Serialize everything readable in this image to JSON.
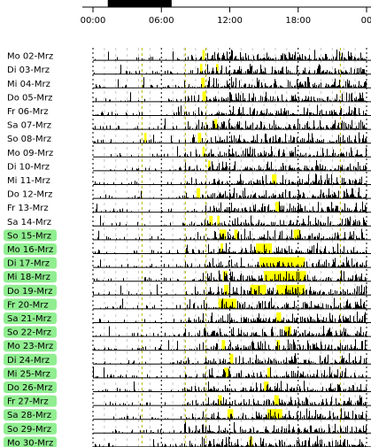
{
  "chart_data": {
    "type": "bar",
    "x_axis": {
      "ticks": [
        "00:00",
        "06:00",
        "12:00",
        "18:00",
        "00"
      ],
      "tick_hours": [
        0,
        6,
        12,
        18,
        24
      ],
      "range_hours": [
        0,
        24
      ]
    },
    "top_bar": {
      "start_hour": 1.3,
      "end_hour": 6.9
    },
    "colors": {
      "activity": "#000000",
      "highlight": "#ffff00",
      "weekend_label_bg": "#90ee90",
      "hour_gridline": "#000000",
      "subhour_gridline": "#c8c8c8",
      "marker_gridline": "#b8b800"
    },
    "marker_lines_hours": [
      4.3,
      8.1,
      9.9,
      21.7
    ],
    "rows": [
      {
        "label": "Mo 02-Mrz",
        "highlight": false,
        "seed": 11,
        "yellow": [
          [
            9.6,
            9.8
          ]
        ]
      },
      {
        "label": "Di 03-Mrz",
        "highlight": false,
        "seed": 12,
        "yellow": [
          [
            9.4,
            9.6
          ],
          [
            10.8,
            11.0
          ]
        ]
      },
      {
        "label": "Mi 04-Mrz",
        "highlight": false,
        "seed": 13,
        "yellow": [
          [
            9.5,
            9.8
          ]
        ]
      },
      {
        "label": "Do 05-Mrz",
        "highlight": false,
        "seed": 14,
        "yellow": [
          [
            9.6,
            9.9
          ]
        ]
      },
      {
        "label": "Fr 06-Mrz",
        "highlight": false,
        "seed": 15,
        "yellow": []
      },
      {
        "label": "Sa 07-Mrz",
        "highlight": false,
        "seed": 16,
        "yellow": [
          [
            10.6,
            10.9
          ]
        ]
      },
      {
        "label": "So 08-Mrz",
        "highlight": false,
        "seed": 17,
        "yellow": [
          [
            4.5,
            4.7
          ],
          [
            9.2,
            9.5
          ]
        ]
      },
      {
        "label": "Mo 09-Mrz",
        "highlight": false,
        "seed": 18,
        "yellow": [
          [
            9.6,
            9.8
          ]
        ]
      },
      {
        "label": "Di 10-Mrz",
        "highlight": false,
        "seed": 19,
        "yellow": [
          [
            10.1,
            10.3
          ]
        ]
      },
      {
        "label": "Mi 11-Mrz",
        "highlight": false,
        "seed": 20,
        "yellow": [
          [
            15.7,
            16.1
          ]
        ]
      },
      {
        "label": "Do 12-Mrz",
        "highlight": false,
        "seed": 21,
        "yellow": [
          [
            9.1,
            9.4
          ]
        ]
      },
      {
        "label": "Fr 13-Mrz",
        "highlight": false,
        "seed": 22,
        "yellow": [
          [
            16.0,
            16.4
          ]
        ]
      },
      {
        "label": "Sa 14-Mrz",
        "highlight": false,
        "seed": 23,
        "yellow": [
          [
            10.2,
            10.5
          ],
          [
            10.9,
            11.1
          ]
        ]
      },
      {
        "label": "So 15-Mrz",
        "highlight": true,
        "seed": 24,
        "yellow": [
          [
            11.1,
            11.7
          ],
          [
            12.4,
            12.7
          ],
          [
            17.6,
            18.2
          ]
        ]
      },
      {
        "label": "Mo 16-Mrz",
        "highlight": true,
        "seed": 25,
        "yellow": [
          [
            14.3,
            15.7
          ],
          [
            11.2,
            11.4
          ]
        ]
      },
      {
        "label": "Di 17-Mrz",
        "highlight": true,
        "seed": 26,
        "yellow": [
          [
            14.6,
            18.6
          ]
        ]
      },
      {
        "label": "Mi 18-Mrz",
        "highlight": true,
        "seed": 27,
        "yellow": [
          [
            15.0,
            18.7
          ],
          [
            11.4,
            11.8
          ]
        ]
      },
      {
        "label": "Do 19-Mrz",
        "highlight": true,
        "seed": 28,
        "yellow": [
          [
            13.8,
            15.2
          ],
          [
            16.1,
            18.6
          ],
          [
            11.5,
            11.9
          ]
        ]
      },
      {
        "label": "Fr 20-Mrz",
        "highlight": true,
        "seed": 29,
        "yellow": [
          [
            11.0,
            12.6
          ]
        ]
      },
      {
        "label": "Sa 21-Mrz",
        "highlight": true,
        "seed": 30,
        "yellow": [
          [
            16.1,
            16.5
          ]
        ]
      },
      {
        "label": "So 22-Mrz",
        "highlight": true,
        "seed": 31,
        "yellow": [
          [
            16.8,
            17.4
          ]
        ]
      },
      {
        "label": "Mo 23-Mrz",
        "highlight": true,
        "seed": 32,
        "yellow": [
          [
            11.3,
            11.6
          ],
          [
            16.1,
            16.4
          ]
        ]
      },
      {
        "label": "Di 24-Mrz",
        "highlight": true,
        "seed": 33,
        "yellow": [
          [
            12.0,
            12.3
          ]
        ]
      },
      {
        "label": "Mi 25-Mrz",
        "highlight": true,
        "seed": 34,
        "yellow": [
          [
            11.5,
            11.9
          ],
          [
            15.3,
            15.6
          ]
        ]
      },
      {
        "label": "Do 26-Mrz",
        "highlight": true,
        "seed": 35,
        "yellow": [
          [
            15.0,
            15.4
          ]
        ]
      },
      {
        "label": "Fr 27-Mrz",
        "highlight": true,
        "seed": 36,
        "yellow": [
          [
            11.0,
            11.3
          ],
          [
            15.9,
            16.3
          ]
        ]
      },
      {
        "label": "Sa 28-Mrz",
        "highlight": true,
        "seed": 37,
        "yellow": [
          [
            11.8,
            12.3
          ],
          [
            15.3,
            16.6
          ]
        ]
      },
      {
        "label": "So 29-Mrz",
        "highlight": true,
        "seed": 38,
        "yellow": []
      },
      {
        "label": "Mo 30-Mrz",
        "highlight": true,
        "seed": 39,
        "yellow": [
          [
            13.7,
            14.0
          ]
        ]
      }
    ]
  }
}
